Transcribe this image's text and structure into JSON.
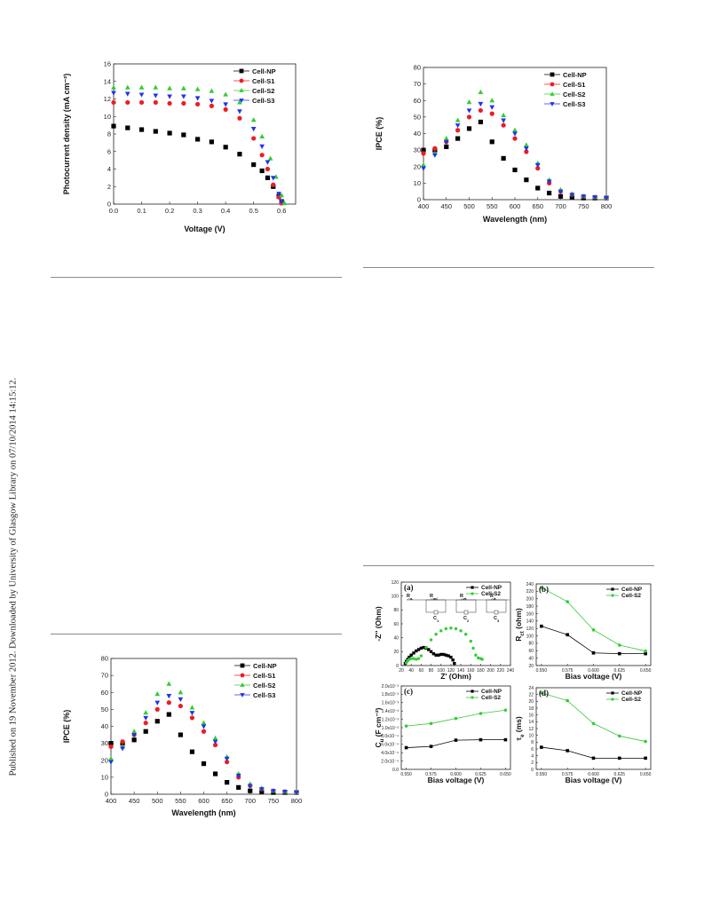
{
  "sidebar": {
    "text": "Published on 19 November 2012. Downloaded by University of Glasgow Library on 07/10/2014 14:15:12."
  },
  "colors": {
    "Cell-NP": "#000000",
    "Cell-S1": "#ee1c24",
    "Cell-S2": "#33cc33",
    "Cell-S3": "#2233ee"
  },
  "chart_data": [
    {
      "id": "jv",
      "type": "scatter",
      "xlabel": "Voltage (V)",
      "ylabel": "Photocurrent density (mA cm⁻²)",
      "xlim": [
        0.0,
        0.65
      ],
      "ylim": [
        0,
        16
      ],
      "xticks": [
        "0.0",
        "0.1",
        "0.2",
        "0.3",
        "0.4",
        "0.5",
        "0.6"
      ],
      "yticks": [
        "0",
        "2",
        "4",
        "6",
        "8",
        "10",
        "12",
        "14",
        "16"
      ],
      "legend": [
        "Cell-NP",
        "Cell-S1",
        "Cell-S2",
        "Cell-S3"
      ],
      "legend_position": "top-right",
      "markers": {
        "Cell-NP": "square",
        "Cell-S1": "circle",
        "Cell-S2": "triangle-up",
        "Cell-S3": "triangle-down"
      },
      "series": [
        {
          "name": "Cell-NP",
          "x": [
            0.0,
            0.05,
            0.1,
            0.15,
            0.2,
            0.25,
            0.3,
            0.35,
            0.4,
            0.45,
            0.5,
            0.53,
            0.55,
            0.57,
            0.59,
            0.6
          ],
          "y": [
            8.9,
            8.7,
            8.5,
            8.3,
            8.1,
            7.9,
            7.4,
            7.1,
            6.5,
            5.7,
            4.5,
            3.8,
            3.0,
            2.0,
            0.9,
            0.3
          ]
        },
        {
          "name": "Cell-S1",
          "x": [
            0.0,
            0.05,
            0.1,
            0.15,
            0.2,
            0.25,
            0.3,
            0.35,
            0.4,
            0.45,
            0.5,
            0.53,
            0.55,
            0.57,
            0.59,
            0.6
          ],
          "y": [
            11.6,
            11.6,
            11.6,
            11.6,
            11.5,
            11.5,
            11.4,
            11.2,
            10.8,
            9.8,
            7.5,
            5.6,
            4.0,
            2.2,
            0.8,
            0.1
          ]
        },
        {
          "name": "Cell-S2",
          "x": [
            0.0,
            0.05,
            0.1,
            0.15,
            0.2,
            0.25,
            0.3,
            0.35,
            0.4,
            0.45,
            0.5,
            0.53,
            0.56,
            0.58,
            0.6,
            0.61
          ],
          "y": [
            13.3,
            13.3,
            13.3,
            13.3,
            13.2,
            13.2,
            13.1,
            12.9,
            12.5,
            11.6,
            9.6,
            7.7,
            5.2,
            3.1,
            1.0,
            0.1
          ]
        },
        {
          "name": "Cell-S3",
          "x": [
            0.0,
            0.05,
            0.1,
            0.15,
            0.2,
            0.25,
            0.3,
            0.35,
            0.4,
            0.45,
            0.5,
            0.53,
            0.55,
            0.57,
            0.59,
            0.6
          ],
          "y": [
            12.7,
            12.6,
            12.5,
            12.4,
            12.3,
            12.3,
            12.1,
            11.8,
            11.4,
            10.6,
            8.6,
            6.6,
            4.8,
            3.0,
            1.2,
            0.3
          ]
        }
      ]
    },
    {
      "id": "ipce-top",
      "type": "scatter",
      "xlabel": "Wavelength (nm)",
      "ylabel": "IPCE (%)",
      "xlim": [
        400,
        800
      ],
      "ylim": [
        0,
        80
      ],
      "xticks": [
        "400",
        "450",
        "500",
        "550",
        "600",
        "650",
        "700",
        "750",
        "800"
      ],
      "yticks": [
        "0",
        "10",
        "20",
        "30",
        "40",
        "50",
        "60",
        "70",
        "80"
      ],
      "legend": [
        "Cell-NP",
        "Cell-S1",
        "Cell-S2",
        "Cell-S3"
      ],
      "legend_position": "top-right",
      "markers": {
        "Cell-NP": "square",
        "Cell-S1": "circle",
        "Cell-S2": "triangle-up",
        "Cell-S3": "triangle-down"
      },
      "series": [
        {
          "name": "Cell-NP",
          "x": [
            400,
            425,
            450,
            475,
            500,
            525,
            550,
            575,
            600,
            625,
            650,
            675,
            700,
            725,
            750,
            775,
            800
          ],
          "y": [
            30,
            30,
            32,
            37,
            43,
            47,
            35,
            25,
            18,
            12,
            7,
            4,
            2,
            1.5,
            1,
            1,
            1
          ]
        },
        {
          "name": "Cell-S1",
          "x": [
            400,
            425,
            450,
            475,
            500,
            525,
            550,
            575,
            600,
            625,
            650,
            675,
            700,
            725,
            750,
            775,
            800
          ],
          "y": [
            28,
            31,
            35,
            42,
            50,
            54,
            52,
            45,
            37,
            29,
            19,
            10,
            5,
            3,
            2,
            1.5,
            1
          ]
        },
        {
          "name": "Cell-S2",
          "x": [
            400,
            425,
            450,
            475,
            500,
            525,
            550,
            575,
            600,
            625,
            650,
            675,
            700,
            725,
            750,
            775,
            800
          ],
          "y": [
            21,
            28,
            37,
            48,
            59,
            65,
            60,
            51,
            42,
            33,
            22,
            12,
            6,
            3.5,
            2,
            1.5,
            1
          ]
        },
        {
          "name": "Cell-S3",
          "x": [
            400,
            425,
            450,
            475,
            500,
            525,
            550,
            575,
            600,
            625,
            650,
            675,
            700,
            725,
            750,
            775,
            800
          ],
          "y": [
            19,
            27,
            35,
            45,
            54,
            58,
            56,
            48,
            40,
            31,
            21,
            11,
            5,
            3,
            2,
            1.5,
            1
          ]
        }
      ]
    },
    {
      "id": "ipce-bottom",
      "type": "scatter",
      "xlabel": "Wavelength (nm)",
      "ylabel": "IPCE (%)",
      "xlim": [
        400,
        800
      ],
      "ylim": [
        0,
        80
      ],
      "xticks": [
        "400",
        "450",
        "500",
        "550",
        "600",
        "650",
        "700",
        "750",
        "800"
      ],
      "yticks": [
        "0",
        "10",
        "20",
        "30",
        "40",
        "50",
        "60",
        "70",
        "80"
      ],
      "legend": [
        "Cell-NP",
        "Cell-S1",
        "Cell-S2",
        "Cell-S3"
      ],
      "legend_position": "top-right",
      "markers": {
        "Cell-NP": "square",
        "Cell-S1": "circle",
        "Cell-S2": "triangle-up",
        "Cell-S3": "triangle-down"
      },
      "series": [
        {
          "name": "Cell-NP",
          "x": [
            400,
            425,
            450,
            475,
            500,
            525,
            550,
            575,
            600,
            625,
            650,
            675,
            700,
            725,
            750,
            775,
            800
          ],
          "y": [
            30,
            30,
            32,
            37,
            43,
            47,
            35,
            25,
            18,
            12,
            7,
            4,
            2,
            1.5,
            1,
            1,
            1
          ]
        },
        {
          "name": "Cell-S1",
          "x": [
            400,
            425,
            450,
            475,
            500,
            525,
            550,
            575,
            600,
            625,
            650,
            675,
            700,
            725,
            750,
            775,
            800
          ],
          "y": [
            28,
            31,
            35,
            42,
            50,
            54,
            52,
            45,
            37,
            29,
            19,
            10,
            5,
            3,
            2,
            1.5,
            1
          ]
        },
        {
          "name": "Cell-S2",
          "x": [
            400,
            425,
            450,
            475,
            500,
            525,
            550,
            575,
            600,
            625,
            650,
            675,
            700,
            725,
            750,
            775,
            800
          ],
          "y": [
            21,
            28,
            37,
            48,
            59,
            65,
            60,
            51,
            42,
            33,
            22,
            12,
            6,
            3.5,
            2,
            1.5,
            1
          ]
        },
        {
          "name": "Cell-S3",
          "x": [
            400,
            425,
            450,
            475,
            500,
            525,
            550,
            575,
            600,
            625,
            650,
            675,
            700,
            725,
            750,
            775,
            800
          ],
          "y": [
            19,
            27,
            35,
            45,
            54,
            58,
            56,
            48,
            40,
            31,
            21,
            11,
            5,
            3,
            2,
            1.5,
            1
          ]
        }
      ]
    },
    {
      "id": "eis-a",
      "type": "scatter",
      "panel_label": "(a)",
      "xlabel": "Z' (Ohm)",
      "ylabel": "-Z'' (Ohm)",
      "xlim": [
        20,
        240
      ],
      "ylim": [
        0,
        120
      ],
      "xticks": [
        "20",
        "40",
        "60",
        "80",
        "100",
        "120",
        "140",
        "160",
        "180",
        "200",
        "220",
        "240"
      ],
      "yticks": [
        "0",
        "20",
        "40",
        "60",
        "80",
        "100",
        "120"
      ],
      "legend": [
        "Cell-NP",
        "Cell-S2"
      ],
      "legend_position": "top-right",
      "markers": {
        "Cell-NP": "square",
        "Cell-S2": "circle"
      },
      "circuit": {
        "resistors": [
          "R",
          "R",
          "R",
          "R"
        ],
        "resistor_subscripts": [
          "s",
          "sd",
          "ct",
          "d"
        ],
        "capacitors": [
          "C",
          "C",
          "C"
        ],
        "capacitor_subscripts": [
          "1",
          "2",
          "3"
        ]
      },
      "series": [
        {
          "name": "Cell-NP",
          "x": [
            28,
            30,
            33,
            36,
            40,
            45,
            50,
            55,
            60,
            65,
            70,
            75,
            80,
            85,
            90,
            95,
            100,
            105,
            110,
            115,
            120,
            124,
            127
          ],
          "y": [
            3,
            6,
            9,
            12,
            15,
            18,
            21,
            23,
            25,
            26,
            25,
            23,
            20,
            17,
            15,
            15,
            16,
            16,
            15,
            14,
            12,
            8,
            3
          ]
        },
        {
          "name": "Cell-S2",
          "x": [
            30,
            33,
            36,
            40,
            45,
            50,
            55,
            60,
            70,
            80,
            90,
            100,
            110,
            120,
            130,
            140,
            150,
            160,
            165,
            170,
            175,
            180,
            183
          ],
          "y": [
            4,
            7,
            9,
            10,
            10,
            9,
            10,
            14,
            26,
            37,
            45,
            50,
            53,
            54,
            53,
            50,
            45,
            35,
            25,
            15,
            11,
            10,
            9
          ]
        }
      ]
    },
    {
      "id": "eis-b",
      "type": "line",
      "panel_label": "(b)",
      "xlabel": "Bias voltage (V)",
      "ylabel": "R_ct (ohm)",
      "ylabel_main": "R",
      "ylabel_sub": "ct",
      "ylabel_unit": "(ohm)",
      "xlim": [
        0.545,
        0.655
      ],
      "ylim": [
        20,
        240
      ],
      "xticks": [
        "0.550",
        "0.575",
        "0.600",
        "0.625",
        "0.650"
      ],
      "yticks": [
        "20",
        "40",
        "60",
        "80",
        "100",
        "120",
        "140",
        "160",
        "180",
        "200",
        "220",
        "240"
      ],
      "legend": [
        "Cell-NP",
        "Cell-S2"
      ],
      "legend_position": "top-right",
      "markers": {
        "Cell-NP": "square",
        "Cell-S2": "circle"
      },
      "series": [
        {
          "name": "Cell-NP",
          "x": [
            0.55,
            0.575,
            0.6,
            0.625,
            0.65
          ],
          "y": [
            126,
            103,
            54,
            52,
            52
          ]
        },
        {
          "name": "Cell-S2",
          "x": [
            0.55,
            0.575,
            0.6,
            0.625,
            0.65
          ],
          "y": [
            230,
            192,
            116,
            75,
            59
          ]
        }
      ]
    },
    {
      "id": "eis-c",
      "type": "line",
      "panel_label": "(c)",
      "xlabel": "Bias voltage (V)",
      "ylabel": "C_u (F cm⁻²)",
      "ylabel_main": "C",
      "ylabel_sub": "u",
      "ylabel_unit": "(F cm⁻²)",
      "xlim": [
        0.545,
        0.655
      ],
      "ylim": [
        0,
        2.0
      ],
      "xticks": [
        "0.550",
        "0.575",
        "0.600",
        "0.625",
        "0.650"
      ],
      "yticks": [
        "0.0",
        "2.0x10⁻⁴",
        "4.0x10⁻⁴",
        "6.0x10⁻⁴",
        "8.0x10⁻⁴",
        "1.0x10⁻³",
        "1.2x10⁻³",
        "1.4x10⁻³",
        "1.6x10⁻³",
        "1.8x10⁻³",
        "2.0x10⁻³"
      ],
      "legend": [
        "Cell-NP",
        "Cell-S2"
      ],
      "legend_position": "top-right",
      "markers": {
        "Cell-NP": "square",
        "Cell-S2": "circle"
      },
      "series": [
        {
          "name": "Cell-NP",
          "x": [
            0.55,
            0.575,
            0.6,
            0.625,
            0.65
          ],
          "y": [
            0.52,
            0.55,
            0.7,
            0.71,
            0.71
          ]
        },
        {
          "name": "Cell-S2",
          "x": [
            0.55,
            0.575,
            0.6,
            0.625,
            0.65
          ],
          "y": [
            1.04,
            1.1,
            1.22,
            1.34,
            1.42
          ]
        }
      ]
    },
    {
      "id": "eis-d",
      "type": "line",
      "panel_label": "(d)",
      "xlabel": "Bias voltage (V)",
      "ylabel": "τ_e (ms)",
      "ylabel_main": "τ",
      "ylabel_sub": "e",
      "ylabel_unit": "(ms)",
      "xlim": [
        0.545,
        0.655
      ],
      "ylim": [
        0,
        24
      ],
      "xticks": [
        "0.550",
        "0.575",
        "0.600",
        "0.625",
        "0.650"
      ],
      "yticks": [
        "0",
        "2",
        "4",
        "6",
        "8",
        "10",
        "12",
        "14",
        "16",
        "18",
        "20",
        "22",
        "24"
      ],
      "legend": [
        "Cell-NP",
        "Cell-S2"
      ],
      "legend_position": "top-right",
      "markers": {
        "Cell-NP": "square",
        "Cell-S2": "circle"
      },
      "series": [
        {
          "name": "Cell-NP",
          "x": [
            0.55,
            0.575,
            0.6,
            0.625,
            0.65
          ],
          "y": [
            6.5,
            5.5,
            3.3,
            3.3,
            3.3
          ]
        },
        {
          "name": "Cell-S2",
          "x": [
            0.55,
            0.575,
            0.6,
            0.625,
            0.65
          ],
          "y": [
            22.5,
            20.2,
            13.5,
            9.8,
            8.2
          ]
        }
      ]
    }
  ]
}
